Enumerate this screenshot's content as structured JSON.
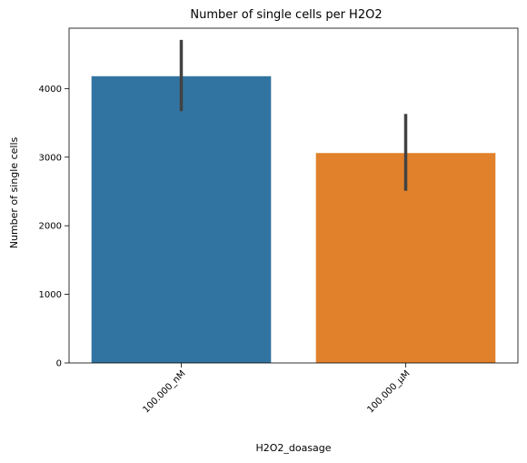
{
  "chart_data": {
    "type": "bar",
    "title": "Number of single cells per H2O2",
    "xlabel": "H2O2_doasage",
    "ylabel": "Number of single cells",
    "categories": [
      "100.000_nM",
      "100.000_µM"
    ],
    "values": [
      4180,
      3060
    ],
    "error_low": [
      3670,
      2510
    ],
    "error_high": [
      4710,
      3630
    ],
    "colors": [
      "#3274a1",
      "#e1812c"
    ],
    "error_color": "#424242",
    "ylim": [
      0,
      4880
    ],
    "yticks": [
      0,
      1000,
      2000,
      3000,
      4000
    ],
    "ytick_labels": [
      "0",
      "1000",
      "2000",
      "3000",
      "4000"
    ],
    "xtick_rotation": 45,
    "grid": false,
    "legend": "none"
  }
}
